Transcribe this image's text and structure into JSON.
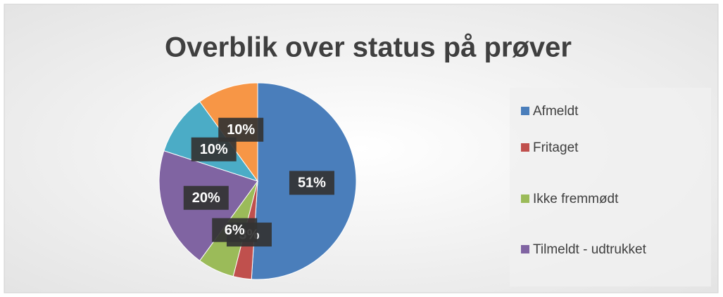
{
  "chart_data": {
    "type": "pie",
    "title": "Overblik over status på prøver",
    "categories": [
      "Afmeldt",
      "Fritaget",
      "Ikke fremmødt",
      "Tilmeldt - udtrukket",
      null,
      null
    ],
    "values": [
      51,
      3,
      6,
      20,
      10,
      10
    ],
    "value_labels": [
      "51%",
      "3%",
      "6%",
      "20%",
      "10%",
      "10%"
    ],
    "colors": [
      "#4a7ebb",
      "#c0504d",
      "#9bbb59",
      "#8064a2",
      "#4bacc6",
      "#f79646"
    ]
  }
}
